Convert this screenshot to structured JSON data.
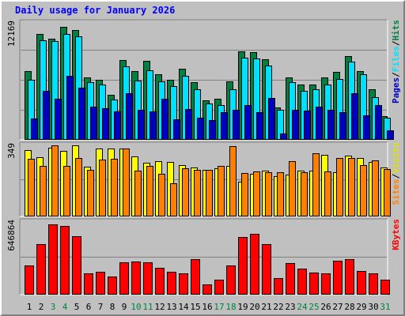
{
  "chart_data": [
    {
      "type": "bar",
      "title": "Daily usage for January 2026",
      "y_tick_label": "12169",
      "ylim": [
        0,
        12169
      ],
      "categories": [
        "1",
        "2",
        "3",
        "4",
        "5",
        "6",
        "7",
        "8",
        "9",
        "10",
        "11",
        "12",
        "13",
        "14",
        "15",
        "16",
        "17",
        "18",
        "19",
        "20",
        "21",
        "22",
        "23",
        "24",
        "25",
        "26",
        "27",
        "28",
        "29",
        "30",
        "31"
      ],
      "weekend_days": [
        "3",
        "4",
        "10",
        "11",
        "17",
        "18",
        "24",
        "25",
        "31"
      ],
      "series": [
        {
          "name": "Hits",
          "color": "#008040",
          "values": [
            7410,
            11420,
            10920,
            12169,
            11900,
            6780,
            6460,
            4880,
            8590,
            7390,
            8500,
            7050,
            6460,
            7640,
            6260,
            4240,
            4400,
            6290,
            9590,
            9460,
            8740,
            3540,
            6780,
            5980,
            5980,
            6750,
            7360,
            9050,
            7450,
            5490,
            2570
          ]
        },
        {
          "name": "Files",
          "color": "#00e0ff",
          "values": [
            6460,
            10740,
            10700,
            11440,
            11220,
            6270,
            5980,
            4340,
            7900,
            6420,
            7470,
            6310,
            5770,
            6930,
            5450,
            3890,
            3740,
            5470,
            8850,
            8770,
            8040,
            3200,
            6200,
            5280,
            5420,
            6000,
            6540,
            8410,
            7100,
            4620,
            2430
          ]
        },
        {
          "name": "Pages",
          "color": "#0000c0",
          "values": [
            2270,
            5260,
            4420,
            6920,
            5630,
            3600,
            3430,
            3100,
            5030,
            3200,
            3060,
            4420,
            2220,
            3350,
            2370,
            2100,
            2960,
            3200,
            3780,
            3020,
            4560,
            700,
            3200,
            3150,
            3550,
            3220,
            2960,
            5030,
            2660,
            3750,
            990
          ]
        }
      ]
    },
    {
      "type": "bar",
      "y_tick_label": "349",
      "ylim": [
        0,
        349
      ],
      "categories": [
        "1",
        "2",
        "3",
        "4",
        "5",
        "6",
        "7",
        "8",
        "9",
        "10",
        "11",
        "12",
        "13",
        "14",
        "15",
        "16",
        "17",
        "18",
        "19",
        "20",
        "21",
        "22",
        "23",
        "24",
        "25",
        "26",
        "27",
        "28",
        "29",
        "30",
        "31"
      ],
      "series": [
        {
          "name": "Visits",
          "color": "#ffff00",
          "values": [
            317,
            283,
            330,
            315,
            342,
            239,
            325,
            328,
            326,
            290,
            258,
            267,
            262,
            247,
            237,
            225,
            230,
            243,
            166,
            205,
            221,
            195,
            201,
            221,
            219,
            295,
            212,
            291,
            282,
            260,
            235
          ]
        },
        {
          "name": "Sites",
          "color": "#ff8000",
          "values": [
            276,
            242,
            340,
            244,
            281,
            224,
            274,
            276,
            327,
            221,
            242,
            206,
            160,
            231,
            224,
            222,
            244,
            338,
            209,
            218,
            211,
            212,
            267,
            214,
            302,
            217,
            281,
            281,
            246,
            271,
            229
          ]
        }
      ]
    },
    {
      "type": "bar",
      "y_tick_label": "646864",
      "ylim": [
        0,
        646864
      ],
      "categories": [
        "1",
        "2",
        "3",
        "4",
        "5",
        "6",
        "7",
        "8",
        "9",
        "10",
        "11",
        "12",
        "13",
        "14",
        "15",
        "16",
        "17",
        "18",
        "19",
        "20",
        "21",
        "22",
        "23",
        "24",
        "25",
        "26",
        "27",
        "28",
        "29",
        "30",
        "31"
      ],
      "series": [
        {
          "name": "KBytes",
          "color": "#ff0000",
          "values": [
            254000,
            441000,
            615000,
            602000,
            510000,
            185000,
            201000,
            156000,
            285000,
            288000,
            285000,
            236000,
            197000,
            187000,
            310000,
            88000,
            132000,
            258000,
            504000,
            528000,
            437000,
            147000,
            274000,
            228000,
            194000,
            185000,
            297000,
            311000,
            209000,
            187000,
            128000
          ]
        }
      ]
    }
  ]
}
